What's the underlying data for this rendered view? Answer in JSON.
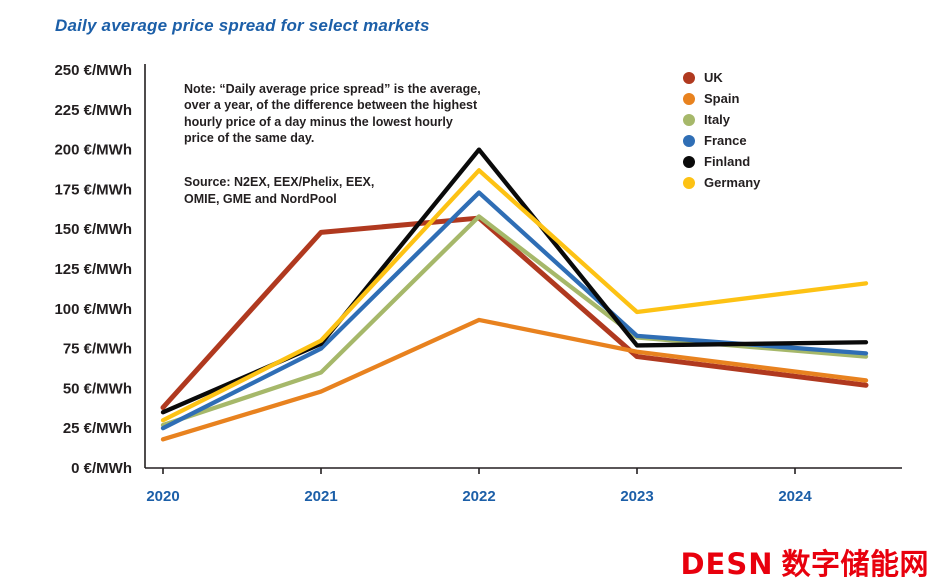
{
  "title": "Daily average price spread for select markets",
  "note": "Note: “Daily average price spread” is the average,\nover a year, of the difference between the highest\nhourly price of a day minus the lowest hourly\nprice of the same day.",
  "source": "Source: N2EX, EEX/Phelix, EEX,\nOMIE, GME and NordPool",
  "footer_logo": {
    "latin": "DESN",
    "chinese": "数字储能网",
    "color": "#e8000d"
  },
  "chart_data": {
    "type": "line",
    "x": [
      "2020",
      "2021",
      "2022",
      "2023",
      "2024"
    ],
    "series": [
      {
        "name": "UK",
        "color": "#b0391f",
        "values": [
          38,
          148,
          157,
          70,
          52
        ]
      },
      {
        "name": "Spain",
        "color": "#e8821f",
        "values": [
          18,
          48,
          93,
          73,
          55
        ]
      },
      {
        "name": "Italy",
        "color": "#a6b86a",
        "values": [
          27,
          60,
          158,
          82,
          70
        ]
      },
      {
        "name": "France",
        "color": "#2f6eb5",
        "values": [
          25,
          75,
          173,
          83,
          72
        ]
      },
      {
        "name": "Finland",
        "color": "#0a0a0a",
        "values": [
          35,
          78,
          200,
          77,
          79
        ]
      },
      {
        "name": "Germany",
        "color": "#fdc214",
        "values": [
          30,
          80,
          187,
          98,
          116
        ]
      }
    ],
    "ylabel_format": "{v} €/MWh",
    "yticks": [
      0,
      25,
      50,
      75,
      100,
      125,
      150,
      175,
      200,
      225,
      250
    ],
    "ylim": [
      0,
      250
    ],
    "xlabel": "",
    "ylabel": "",
    "grid": false,
    "legend_position": "top-right"
  }
}
